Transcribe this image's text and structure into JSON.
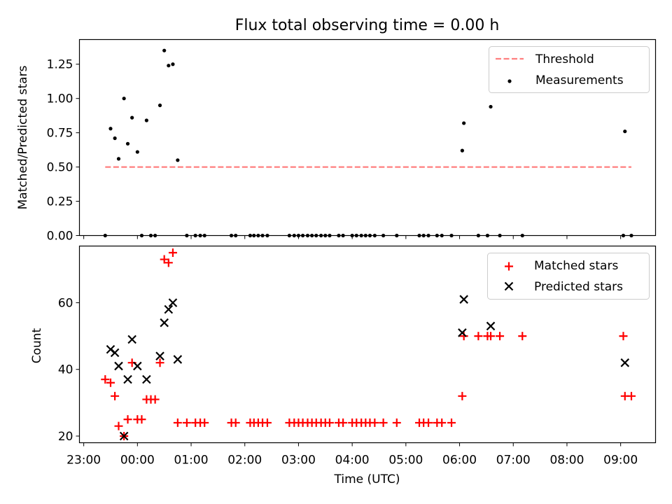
{
  "chart_data": [
    {
      "type": "scatter",
      "title": "Flux total observing time = 0.00 h",
      "xlabel": "",
      "ylabel": "Matched/Predicted stars",
      "x_unit": "hours relative to 00:00 UTC",
      "xlim": [
        -1.08,
        9.65
      ],
      "ylim": [
        0,
        1.43
      ],
      "yticks": [
        0.0,
        0.25,
        0.5,
        0.75,
        1.0,
        1.25
      ],
      "ytick_labels": [
        "0.00",
        "0.25",
        "0.50",
        "0.75",
        "1.00",
        "1.25"
      ],
      "legend": {
        "location": "top-right",
        "entries": [
          "Threshold",
          "Measurements"
        ]
      },
      "series": [
        {
          "name": "Threshold",
          "kind": "line",
          "style": "dashed",
          "color": "#ff7f7f",
          "x": [
            -0.6,
            9.2
          ],
          "y": [
            0.5,
            0.5
          ]
        },
        {
          "name": "Measurements",
          "kind": "scatter",
          "marker": "dot",
          "color": "#000000",
          "x": [
            -0.6,
            -0.5,
            -0.42,
            -0.35,
            -0.25,
            -0.18,
            -0.1,
            0.0,
            0.08,
            0.17,
            0.25,
            0.33,
            0.42,
            0.5,
            0.58,
            0.66,
            0.75,
            0.92,
            1.08,
            1.17,
            1.25,
            1.75,
            1.83,
            2.1,
            2.17,
            2.25,
            2.33,
            2.42,
            2.83,
            2.92,
            3.0,
            3.08,
            3.17,
            3.25,
            3.33,
            3.42,
            3.5,
            3.58,
            3.75,
            3.83,
            4.0,
            4.08,
            4.17,
            4.25,
            4.33,
            4.42,
            4.58,
            4.83,
            5.25,
            5.33,
            5.42,
            5.58,
            5.67,
            5.85,
            6.05,
            6.08,
            6.35,
            6.52,
            6.58,
            6.75,
            7.17,
            9.05,
            9.08,
            9.2
          ],
          "y": [
            0.0,
            0.78,
            0.71,
            0.56,
            1.0,
            0.67,
            0.86,
            0.61,
            0.0,
            0.84,
            0.0,
            0.0,
            0.95,
            1.35,
            1.24,
            1.25,
            0.55,
            0.0,
            0.0,
            0.0,
            0.0,
            0.0,
            0.0,
            0.0,
            0.0,
            0.0,
            0.0,
            0.0,
            0.0,
            0.0,
            0.0,
            0.0,
            0.0,
            0.0,
            0.0,
            0.0,
            0.0,
            0.0,
            0.0,
            0.0,
            0.0,
            0.0,
            0.0,
            0.0,
            0.0,
            0.0,
            0.0,
            0.0,
            0.0,
            0.0,
            0.0,
            0.0,
            0.0,
            0.0,
            0.62,
            0.82,
            0.0,
            0.0,
            0.94,
            0.0,
            0.0,
            0.0,
            0.76,
            0.0
          ]
        }
      ]
    },
    {
      "type": "scatter",
      "title": "",
      "xlabel": "Time (UTC)",
      "ylabel": "Count",
      "x_unit": "hours relative to 00:00 UTC",
      "xlim": [
        -1.08,
        9.65
      ],
      "ylim": [
        18,
        77
      ],
      "yticks": [
        20,
        40,
        60
      ],
      "ytick_labels": [
        "20",
        "40",
        "60"
      ],
      "xticks": [
        -1,
        0,
        1,
        2,
        3,
        4,
        5,
        6,
        7,
        8,
        9
      ],
      "xtick_labels": [
        "23:00",
        "00:00",
        "01:00",
        "02:00",
        "03:00",
        "04:00",
        "05:00",
        "06:00",
        "07:00",
        "08:00",
        "09:00"
      ],
      "legend": {
        "location": "top-right",
        "entries": [
          "Matched stars",
          "Predicted stars"
        ]
      },
      "series": [
        {
          "name": "Matched stars",
          "marker": "plus",
          "color": "#ff0000",
          "x": [
            -0.6,
            -0.5,
            -0.42,
            -0.35,
            -0.25,
            -0.18,
            -0.1,
            0.0,
            0.08,
            0.17,
            0.25,
            0.33,
            0.42,
            0.5,
            0.58,
            0.66,
            0.75,
            0.92,
            1.08,
            1.17,
            1.25,
            1.75,
            1.83,
            2.1,
            2.17,
            2.25,
            2.33,
            2.42,
            2.83,
            2.92,
            3.0,
            3.08,
            3.17,
            3.25,
            3.33,
            3.42,
            3.5,
            3.58,
            3.75,
            3.83,
            4.0,
            4.08,
            4.17,
            4.25,
            4.33,
            4.42,
            4.58,
            4.83,
            5.25,
            5.33,
            5.42,
            5.58,
            5.67,
            5.85,
            6.05,
            6.08,
            6.35,
            6.52,
            6.58,
            6.75,
            7.17,
            9.05,
            9.08,
            9.2
          ],
          "y": [
            37,
            36,
            32,
            23,
            20,
            25,
            42,
            25,
            25,
            31,
            31,
            31,
            42,
            73,
            72,
            75,
            24,
            24,
            24,
            24,
            24,
            24,
            24,
            24,
            24,
            24,
            24,
            24,
            24,
            24,
            24,
            24,
            24,
            24,
            24,
            24,
            24,
            24,
            24,
            24,
            24,
            24,
            24,
            24,
            24,
            24,
            24,
            24,
            24,
            24,
            24,
            24,
            24,
            24,
            32,
            50,
            50,
            50,
            50,
            50,
            50,
            50,
            32,
            32
          ]
        },
        {
          "name": "Predicted stars",
          "marker": "x",
          "color": "#000000",
          "x": [
            -0.5,
            -0.42,
            -0.35,
            -0.25,
            -0.18,
            -0.1,
            0.0,
            0.17,
            0.42,
            0.5,
            0.58,
            0.66,
            0.75,
            6.05,
            6.08,
            6.58,
            9.08
          ],
          "y": [
            46,
            45,
            41,
            20,
            37,
            49,
            41,
            37,
            44,
            54,
            58,
            60,
            43,
            51,
            61,
            53,
            42
          ]
        }
      ]
    }
  ]
}
